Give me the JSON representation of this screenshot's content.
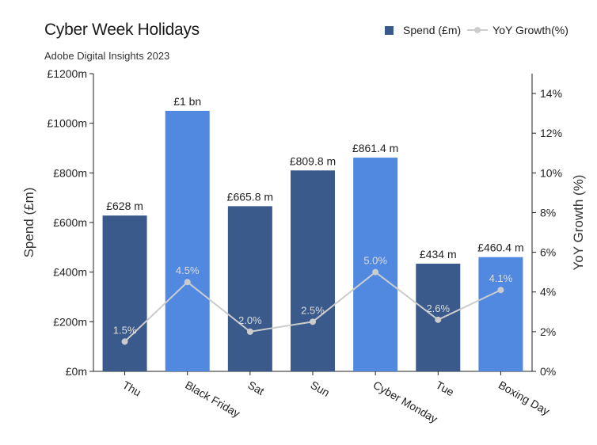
{
  "chart_data": {
    "type": "bar",
    "title": "Cyber Week Holidays",
    "subtitle": "Adobe Digital Insights 2023",
    "categories": [
      "Thu",
      "Black Friday",
      "Sat",
      "Sun",
      "Cyber Monday",
      "Tue",
      "Boxing Day"
    ],
    "ylabel": "Spend (£m)",
    "y2label": "YoY Growth (%)",
    "ylim": [
      0,
      1200
    ],
    "y2lim": [
      0,
      15
    ],
    "yticks": [
      "£0m",
      "£200m",
      "£400m",
      "£600m",
      "£800m",
      "£1000m",
      "£1200m"
    ],
    "y2ticks": [
      "0%",
      "2%",
      "4%",
      "6%",
      "8%",
      "10%",
      "12%",
      "14%"
    ],
    "series": [
      {
        "name": "Spend (£m)",
        "type": "bar",
        "values": [
          628,
          1050,
          665.8,
          809.8,
          861.4,
          434,
          460.4
        ],
        "labels": [
          "£628 m",
          "£1 bn",
          "£665.8 m",
          "£809.8 m",
          "£861.4 m",
          "£434 m",
          "£460.4 m"
        ],
        "highlight": [
          false,
          true,
          false,
          false,
          true,
          false,
          true
        ]
      },
      {
        "name": "YoY Growth(%)",
        "type": "line",
        "values": [
          1.5,
          4.5,
          2.0,
          2.5,
          5.0,
          2.6,
          4.1
        ],
        "labels": [
          "1.5%",
          "4.5%",
          "2.0%",
          "2.5%",
          "5.0%",
          "2.6%",
          "4.1%"
        ]
      }
    ],
    "colors": {
      "bar": "#3a5a8c",
      "bar_highlight": "#5289e0",
      "line": "#cccccc",
      "axis": "#222222"
    },
    "legend": "top-right",
    "grid": false
  }
}
